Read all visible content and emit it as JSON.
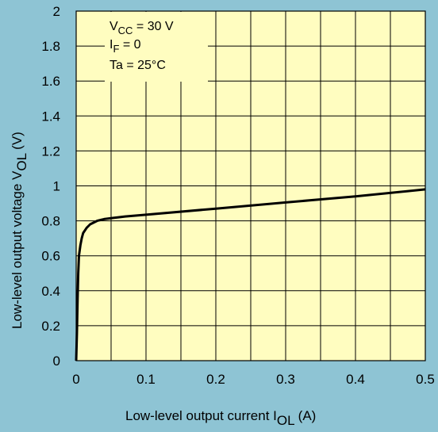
{
  "chart_data": {
    "type": "line",
    "xlabel": "Low-level output current",
    "xlabel_symbol": "I",
    "xlabel_subscript": "OL",
    "xlabel_unit": "(A)",
    "ylabel": "Low-level output voltage",
    "ylabel_symbol": "V",
    "ylabel_subscript": "OL",
    "ylabel_unit": "(V)",
    "xlim": [
      0,
      0.5
    ],
    "ylim": [
      0,
      2
    ],
    "x_ticks": [
      "0",
      "0.1",
      "0.2",
      "0.3",
      "0.4",
      "0.5"
    ],
    "y_ticks": [
      "0",
      "0.2",
      "0.4",
      "0.6",
      "0.8",
      "1",
      "1.2",
      "1.4",
      "1.6",
      "1.8",
      "2"
    ],
    "grid": true,
    "annotations": [
      {
        "main": "V",
        "sub": "CC",
        "rest": " = 30 V"
      },
      {
        "main": "I",
        "sub": "F",
        "rest": " = 0"
      },
      {
        "main": "Ta = 25°C",
        "sub": "",
        "rest": ""
      }
    ],
    "series": [
      {
        "x": [
          0,
          0.001,
          0.002,
          0.003,
          0.004,
          0.006,
          0.008,
          0.01,
          0.015,
          0.02,
          0.03,
          0.04,
          0.05,
          0.07,
          0.1,
          0.2,
          0.3,
          0.4,
          0.5
        ],
        "y": [
          0,
          0.15,
          0.35,
          0.5,
          0.6,
          0.66,
          0.7,
          0.73,
          0.76,
          0.78,
          0.8,
          0.81,
          0.815,
          0.825,
          0.835,
          0.87,
          0.905,
          0.94,
          0.98
        ]
      }
    ]
  }
}
